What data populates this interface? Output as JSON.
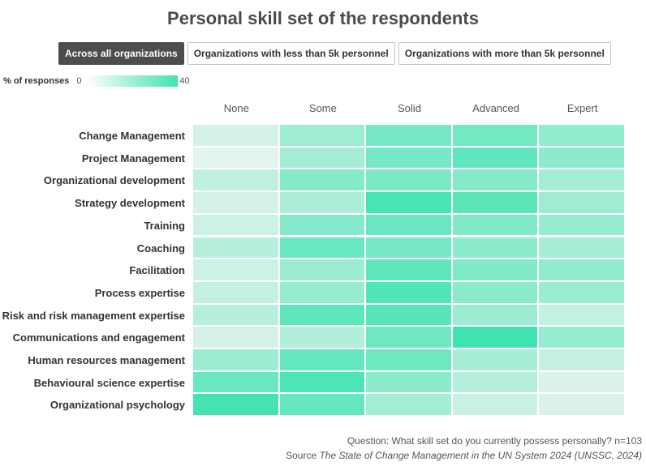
{
  "title": "Personal skill set of the respondents",
  "tabs": [
    {
      "label": "Across all organizations",
      "active": true
    },
    {
      "label": "Organizations with less than 5k personnel",
      "active": false
    },
    {
      "label": "Organizations with more than 5k personnel",
      "active": false
    }
  ],
  "legend": {
    "title": "% of responses",
    "min": "0",
    "max": "40",
    "color_low": "#ffffff",
    "color_high": "#40e3b0"
  },
  "chart_data": {
    "type": "heatmap",
    "x": [
      "None",
      "Some",
      "Solid",
      "Advanced",
      "Expert"
    ],
    "y": [
      "Change Management",
      "Project Management",
      "Organizational development",
      "Strategy development",
      "Training",
      "Coaching",
      "Facilitation",
      "Process expertise",
      "Risk and risk management expertise",
      "Communications and engagement",
      "Human resources management",
      "Behavioural science expertise",
      "Organizational psychology"
    ],
    "values": [
      [
        7,
        19,
        28,
        29,
        22
      ],
      [
        4,
        18,
        28,
        33,
        23
      ],
      [
        12,
        25,
        27,
        25,
        18
      ],
      [
        7,
        16,
        38,
        34,
        19
      ],
      [
        9,
        24,
        31,
        26,
        21
      ],
      [
        14,
        31,
        28,
        23,
        17
      ],
      [
        9,
        20,
        33,
        26,
        22
      ],
      [
        11,
        21,
        36,
        23,
        20
      ],
      [
        14,
        33,
        35,
        20,
        11
      ],
      [
        7,
        15,
        30,
        42,
        21
      ],
      [
        20,
        32,
        30,
        17,
        11
      ],
      [
        31,
        37,
        23,
        14,
        6
      ],
      [
        39,
        32,
        18,
        10,
        6
      ]
    ],
    "scale": {
      "min": 0,
      "max": 40
    }
  },
  "footer": {
    "question": "Question: What skill set do you currently possess personally? n=103",
    "source_prefix": "Source ",
    "source_title": "The State of Change Management in the UN System 2024 (UNSSC, 2024)"
  }
}
